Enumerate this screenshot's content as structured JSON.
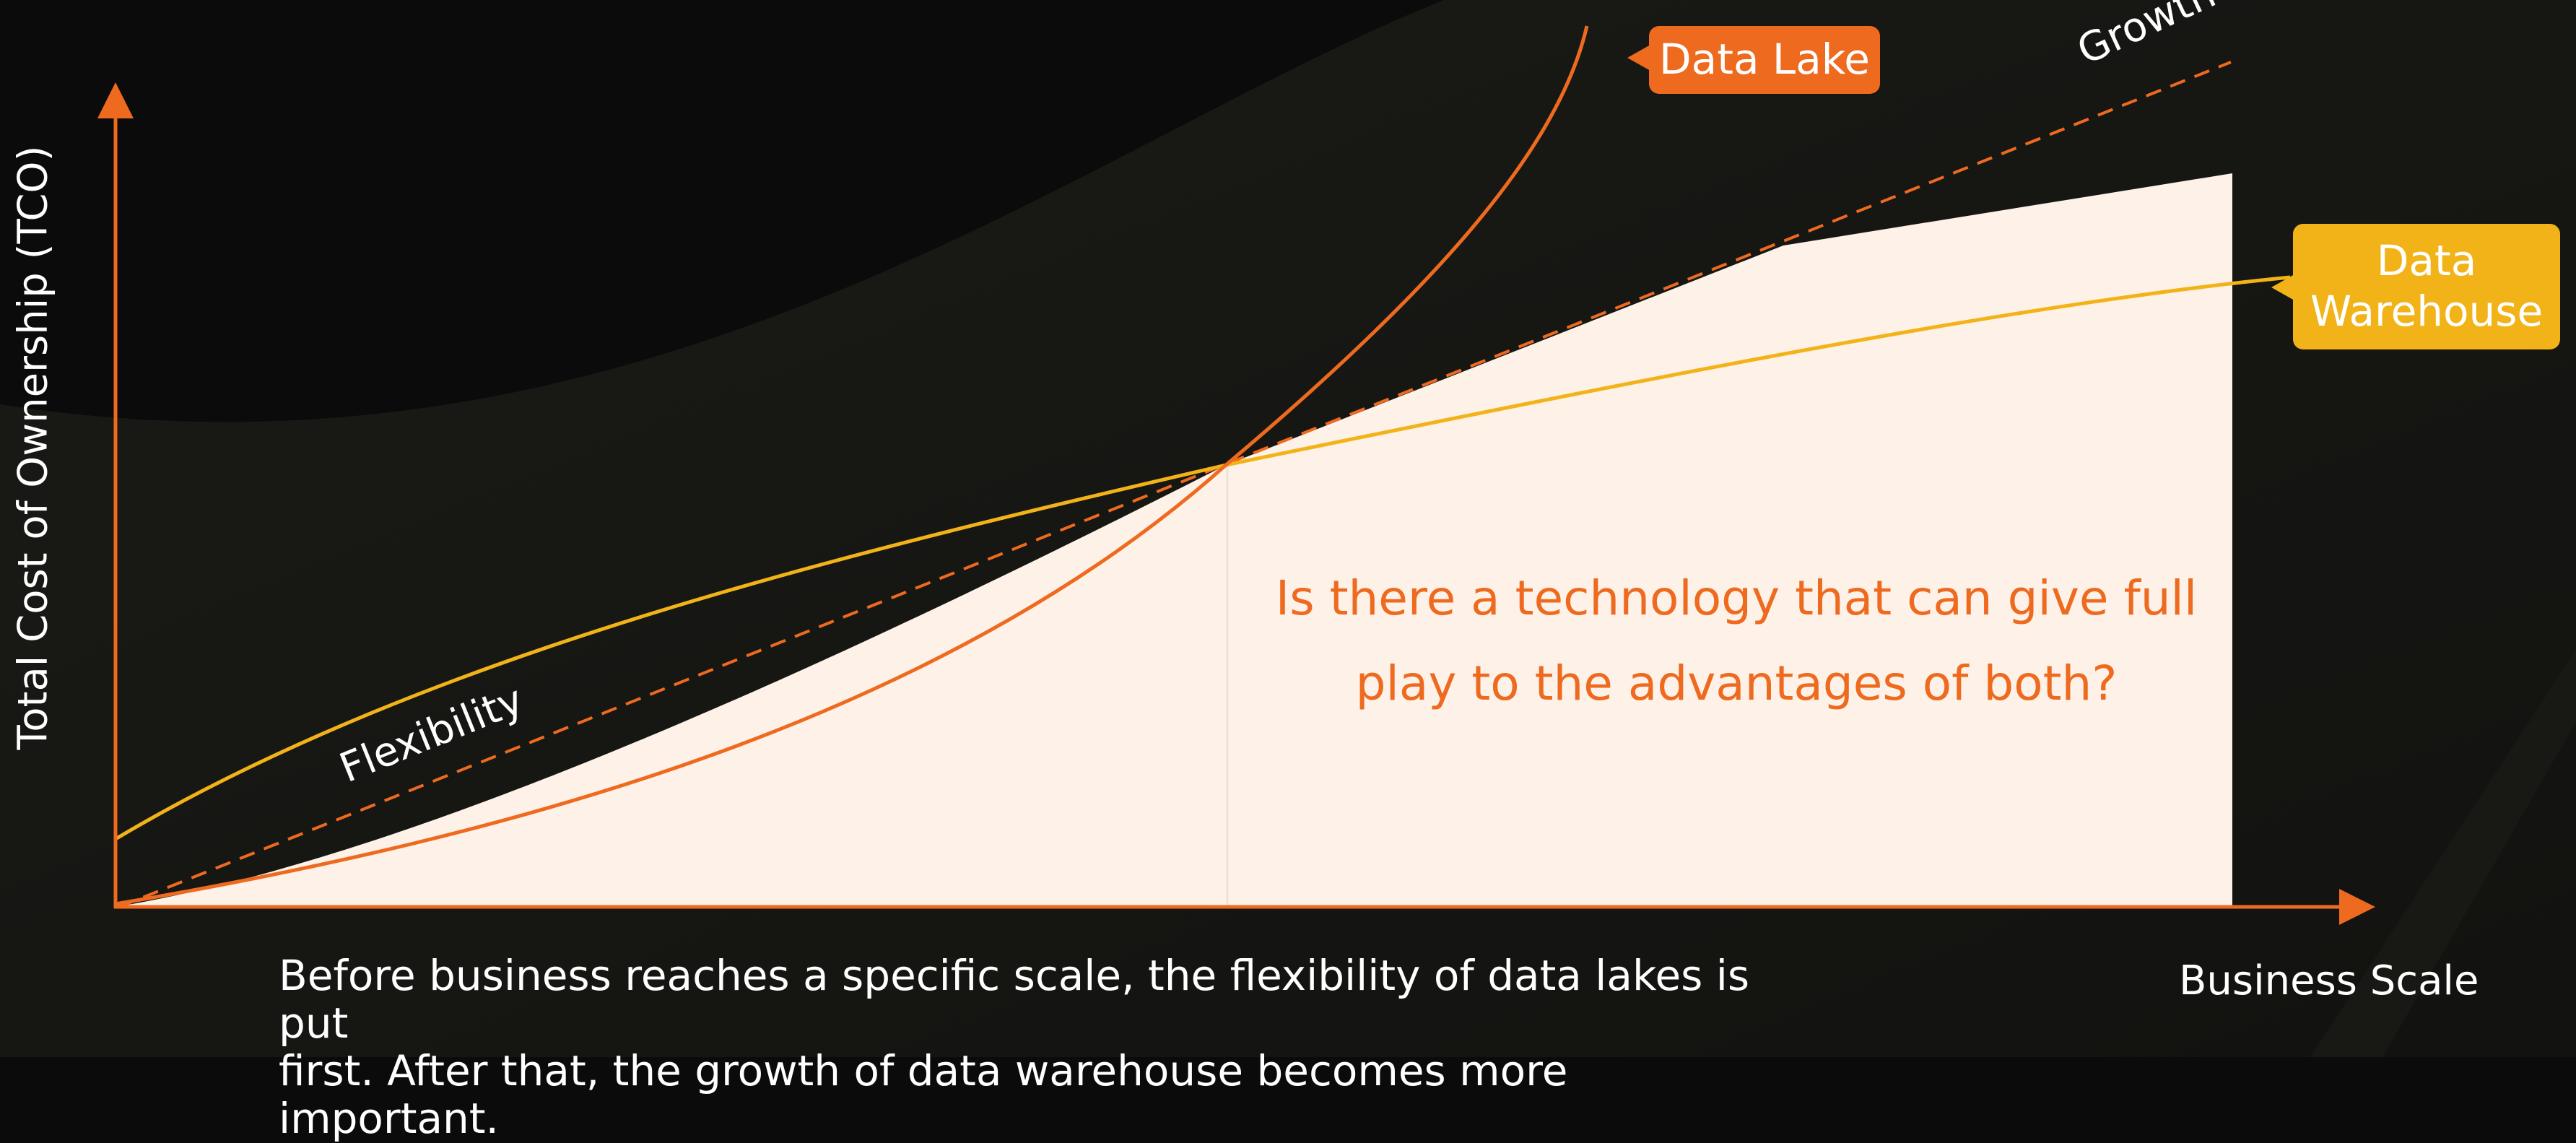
{
  "axes": {
    "y_label": "Total Cost of Ownership (TCO)",
    "x_label": "Business Scale"
  },
  "curves": {
    "data_lake": {
      "label": "Data Lake",
      "color": "#ee6a1f"
    },
    "data_warehouse": {
      "label_line1": "Data",
      "label_line2": "Warehouse",
      "color": "#f2b318"
    },
    "growth": {
      "label": "Growth"
    },
    "flexibility": {
      "label": "Flexibility"
    }
  },
  "question": {
    "line1": "Is there a technology that can give full",
    "line2": "play to the advantages of both?"
  },
  "caption": {
    "line1": "Before business reaches a specific scale, the flexibility of data lakes is put",
    "line2": "first. After that, the growth of data warehouse becomes more important."
  },
  "colors": {
    "accent_orange": "#ee6a1f",
    "accent_yellow": "#f2b318",
    "region_fill": "#fdf1e8",
    "background": "#0b0b0b"
  }
}
